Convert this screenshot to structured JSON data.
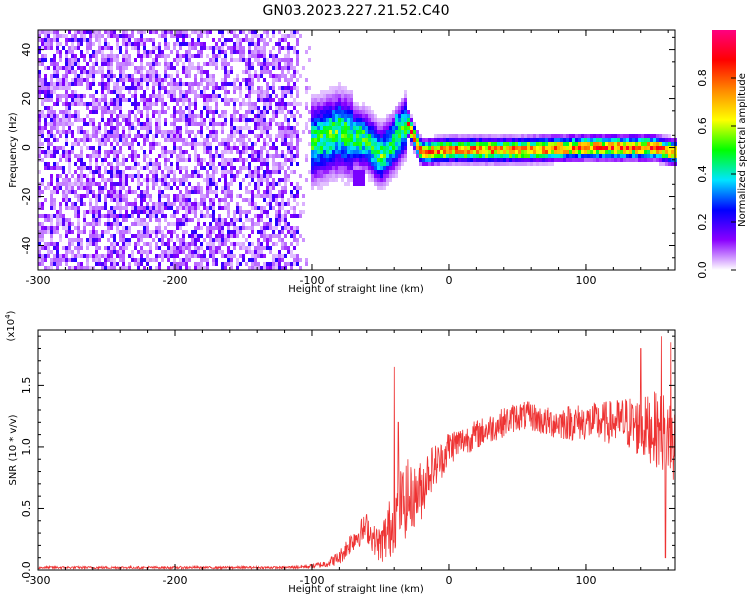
{
  "title": "GN03.2023.227.21.52.C40",
  "chart_data": [
    {
      "type": "heatmap",
      "xlabel": "Height of straight line (km)",
      "ylabel": "Frequency (Hz)",
      "xlim": [
        -300,
        165
      ],
      "ylim": [
        -50,
        48
      ],
      "xticks": [
        -300,
        -200,
        -100,
        0,
        100
      ],
      "yticks": [
        -40,
        -20,
        0,
        20,
        40
      ],
      "colorbar": {
        "label": "Normalized spectral amplitude",
        "range": [
          0,
          1
        ],
        "ticks": [
          0.0,
          0.2,
          0.4,
          0.6,
          0.8
        ],
        "tick_labels": [
          "0.0",
          "0.2",
          "0.4",
          "0.6",
          "0.8"
        ],
        "colormap": "rainbow",
        "stops": [
          "#ffffff",
          "#8a00ff",
          "#0000ff",
          "#00e5ff",
          "#00ff00",
          "#ffff00",
          "#ff8800",
          "#ff0000",
          "#ff0080"
        ]
      },
      "regions": [
        {
          "x_range": [
            -300,
            -110
          ],
          "f_range": [
            -50,
            48
          ],
          "amplitude": [
            0.05,
            0.2
          ],
          "pattern": "broadband noise"
        },
        {
          "x_range": [
            -110,
            -30
          ],
          "f_range": [
            -12,
            15
          ],
          "amplitude": [
            0.3,
            0.55
          ],
          "pattern": "wandering tone"
        },
        {
          "x_range": [
            -30,
            165
          ],
          "f_range": [
            -4,
            3
          ],
          "amplitude": [
            0.5,
            0.9
          ],
          "pattern": "narrow tone near 0 Hz"
        }
      ],
      "ridge": {
        "x": [
          -110,
          -100,
          -90,
          -80,
          -70,
          -60,
          -50,
          -40,
          -30,
          -20,
          0,
          50,
          100,
          150,
          165
        ],
        "f": [
          -10,
          2,
          4,
          6,
          4,
          3,
          -4,
          2,
          10,
          -2,
          -1,
          -1,
          0,
          0,
          -2
        ]
      }
    },
    {
      "type": "line",
      "xlabel": "Height of straight line (km)",
      "ylabel": "SNR (10 * v/v)",
      "y_multiplier": "(x10^4)",
      "xlim": [
        -300,
        165
      ],
      "ylim": [
        0,
        1.95
      ],
      "xticks": [
        -300,
        -200,
        -100,
        0,
        100
      ],
      "yticks": [
        0.0,
        0.5,
        1.0,
        1.5
      ],
      "ytick_labels": [
        "0.0",
        "0.5",
        "1.0",
        "1.5"
      ],
      "color": "#ee3333",
      "series": [
        {
          "x": [
            -300,
            -250,
            -200,
            -150,
            -120,
            -100,
            -90,
            -80,
            -70,
            -60,
            -55,
            -50,
            -45,
            -40,
            -35,
            -30,
            -25,
            -20,
            -15,
            -10,
            -5,
            0,
            10,
            20,
            30,
            40,
            50,
            60,
            70,
            80,
            90,
            100,
            110,
            120,
            130,
            140,
            150,
            160,
            165
          ],
          "y": [
            0.02,
            0.02,
            0.02,
            0.02,
            0.02,
            0.03,
            0.05,
            0.1,
            0.25,
            0.35,
            0.25,
            0.2,
            0.3,
            0.4,
            0.55,
            0.55,
            0.6,
            0.65,
            0.8,
            0.85,
            0.9,
            1.0,
            1.05,
            1.1,
            1.15,
            1.2,
            1.25,
            1.25,
            1.2,
            1.2,
            1.2,
            1.2,
            1.2,
            1.2,
            1.2,
            1.15,
            1.15,
            1.1,
            1.0
          ],
          "noise": [
            0.01,
            0.01,
            0.01,
            0.01,
            0.01,
            0.02,
            0.03,
            0.06,
            0.1,
            0.12,
            0.12,
            0.15,
            0.25,
            0.25,
            0.3,
            0.3,
            0.25,
            0.25,
            0.2,
            0.18,
            0.15,
            0.15,
            0.12,
            0.12,
            0.12,
            0.12,
            0.12,
            0.12,
            0.12,
            0.14,
            0.15,
            0.15,
            0.17,
            0.18,
            0.22,
            0.25,
            0.3,
            0.35,
            0.35
          ],
          "spikes": [
            [
              -40,
              1.65
            ],
            [
              -37,
              1.2
            ],
            [
              -30,
              0.9
            ],
            [
              140,
              1.8
            ],
            [
              155,
              1.9
            ],
            [
              158,
              0.1
            ],
            [
              162,
              1.85
            ]
          ]
        }
      ]
    }
  ]
}
